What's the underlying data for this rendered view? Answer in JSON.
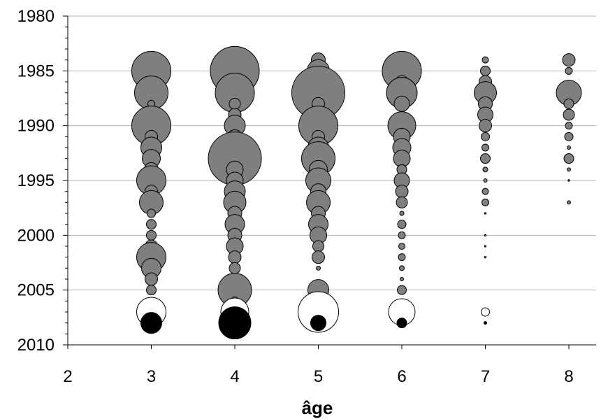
{
  "chart_data": {
    "type": "bubble",
    "xlabel": "âge",
    "ylabel": "",
    "xlim": [
      2,
      8
    ],
    "ylim": [
      1980,
      2010
    ],
    "y_reversed": true,
    "xticks": [
      "2",
      "3",
      "4",
      "5",
      "6",
      "7",
      "8"
    ],
    "yticks": [
      "1980",
      "1985",
      "1990",
      "1995",
      "2000",
      "2005",
      "2010"
    ],
    "grid": "horizontal",
    "legend": "none",
    "colors": {
      "historical": "#7f7f7f",
      "open": "#ffffff",
      "last": "#000000",
      "stroke": "#000000"
    },
    "series": [
      {
        "color": "#7f7f7f",
        "points": [
          {
            "x": 3,
            "y": 1985,
            "size": 28
          },
          {
            "x": 3,
            "y": 1987,
            "size": 24
          },
          {
            "x": 3,
            "y": 1988,
            "size": 5
          },
          {
            "x": 3,
            "y": 1990,
            "size": 28
          },
          {
            "x": 3,
            "y": 1991,
            "size": 9
          },
          {
            "x": 3,
            "y": 1992,
            "size": 15
          },
          {
            "x": 3,
            "y": 1993,
            "size": 13
          },
          {
            "x": 3,
            "y": 1994,
            "size": 10
          },
          {
            "x": 3,
            "y": 1995,
            "size": 21
          },
          {
            "x": 3,
            "y": 1996,
            "size": 9
          },
          {
            "x": 3,
            "y": 1997,
            "size": 17
          },
          {
            "x": 3,
            "y": 1998,
            "size": 6
          },
          {
            "x": 3,
            "y": 1999,
            "size": 7
          },
          {
            "x": 3,
            "y": 2000,
            "size": 7
          },
          {
            "x": 3,
            "y": 2001,
            "size": 9
          },
          {
            "x": 3,
            "y": 2002,
            "size": 21
          },
          {
            "x": 3,
            "y": 2003,
            "size": 14
          },
          {
            "x": 3,
            "y": 2004,
            "size": 9
          },
          {
            "x": 3,
            "y": 2005,
            "size": 7
          },
          {
            "x": 4,
            "y": 1985,
            "size": 35
          },
          {
            "x": 4,
            "y": 1987,
            "size": 28
          },
          {
            "x": 4,
            "y": 1988,
            "size": 8
          },
          {
            "x": 4,
            "y": 1989,
            "size": 9
          },
          {
            "x": 4,
            "y": 1990,
            "size": 15
          },
          {
            "x": 4,
            "y": 1991,
            "size": 10
          },
          {
            "x": 4,
            "y": 1993,
            "size": 38
          },
          {
            "x": 4,
            "y": 1994,
            "size": 12
          },
          {
            "x": 4,
            "y": 1995,
            "size": 12
          },
          {
            "x": 4,
            "y": 1996,
            "size": 15
          },
          {
            "x": 4,
            "y": 1997,
            "size": 16
          },
          {
            "x": 4,
            "y": 1998,
            "size": 10
          },
          {
            "x": 4,
            "y": 1999,
            "size": 14
          },
          {
            "x": 4,
            "y": 2000,
            "size": 10
          },
          {
            "x": 4,
            "y": 2001,
            "size": 12
          },
          {
            "x": 4,
            "y": 2002,
            "size": 9
          },
          {
            "x": 4,
            "y": 2003,
            "size": 8
          },
          {
            "x": 4,
            "y": 2005,
            "size": 24
          },
          {
            "x": 4,
            "y": 2006,
            "size": 6
          },
          {
            "x": 5,
            "y": 1984,
            "size": 10
          },
          {
            "x": 5,
            "y": 1985,
            "size": 16
          },
          {
            "x": 5,
            "y": 1986,
            "size": 20
          },
          {
            "x": 5,
            "y": 1987,
            "size": 38
          },
          {
            "x": 5,
            "y": 1988,
            "size": 9
          },
          {
            "x": 5,
            "y": 1990,
            "size": 28
          },
          {
            "x": 5,
            "y": 1991,
            "size": 9
          },
          {
            "x": 5,
            "y": 1992,
            "size": 15
          },
          {
            "x": 5,
            "y": 1993,
            "size": 24
          },
          {
            "x": 5,
            "y": 1994,
            "size": 13
          },
          {
            "x": 5,
            "y": 1995,
            "size": 18
          },
          {
            "x": 5,
            "y": 1996,
            "size": 11
          },
          {
            "x": 5,
            "y": 1997,
            "size": 17
          },
          {
            "x": 5,
            "y": 1998,
            "size": 10
          },
          {
            "x": 5,
            "y": 1999,
            "size": 14
          },
          {
            "x": 5,
            "y": 2000,
            "size": 12
          },
          {
            "x": 5,
            "y": 2001,
            "size": 8
          },
          {
            "x": 5,
            "y": 2002,
            "size": 9
          },
          {
            "x": 5,
            "y": 2003,
            "size": 3
          },
          {
            "x": 5,
            "y": 2005,
            "size": 15
          },
          {
            "x": 6,
            "y": 1985,
            "size": 28
          },
          {
            "x": 6,
            "y": 1986,
            "size": 9
          },
          {
            "x": 6,
            "y": 1987,
            "size": 22
          },
          {
            "x": 6,
            "y": 1988,
            "size": 11
          },
          {
            "x": 6,
            "y": 1990,
            "size": 20
          },
          {
            "x": 6,
            "y": 1991,
            "size": 12
          },
          {
            "x": 6,
            "y": 1992,
            "size": 13
          },
          {
            "x": 6,
            "y": 1993,
            "size": 12
          },
          {
            "x": 6,
            "y": 1994,
            "size": 7
          },
          {
            "x": 6,
            "y": 1995,
            "size": 11
          },
          {
            "x": 6,
            "y": 1996,
            "size": 9
          },
          {
            "x": 6,
            "y": 1997,
            "size": 8
          },
          {
            "x": 6,
            "y": 1998,
            "size": 3
          },
          {
            "x": 6,
            "y": 1999,
            "size": 6
          },
          {
            "x": 6,
            "y": 2000,
            "size": 5
          },
          {
            "x": 6,
            "y": 2001,
            "size": 4.5
          },
          {
            "x": 6,
            "y": 2002,
            "size": 5
          },
          {
            "x": 6,
            "y": 2003,
            "size": 3.5
          },
          {
            "x": 6,
            "y": 2004,
            "size": 2.5
          },
          {
            "x": 6,
            "y": 2005,
            "size": 6.5
          },
          {
            "x": 7,
            "y": 1984,
            "size": 4.5
          },
          {
            "x": 7,
            "y": 1985,
            "size": 7
          },
          {
            "x": 7,
            "y": 1986,
            "size": 9
          },
          {
            "x": 7,
            "y": 1987,
            "size": 16
          },
          {
            "x": 7,
            "y": 1988,
            "size": 10
          },
          {
            "x": 7,
            "y": 1989,
            "size": 11
          },
          {
            "x": 7,
            "y": 1990,
            "size": 9
          },
          {
            "x": 7,
            "y": 1991,
            "size": 6
          },
          {
            "x": 7,
            "y": 1992,
            "size": 5
          },
          {
            "x": 7,
            "y": 1993,
            "size": 7
          },
          {
            "x": 7,
            "y": 1994,
            "size": 3.5
          },
          {
            "x": 7,
            "y": 1995,
            "size": 2.5
          },
          {
            "x": 7,
            "y": 1996,
            "size": 4.5
          },
          {
            "x": 7,
            "y": 1997,
            "size": 5
          },
          {
            "x": 7,
            "y": 1998,
            "size": 1.2
          },
          {
            "x": 7,
            "y": 2000,
            "size": 1.2
          },
          {
            "x": 7,
            "y": 2001,
            "size": 1.2
          },
          {
            "x": 7,
            "y": 2002,
            "size": 1.2
          },
          {
            "x": 8,
            "y": 1984,
            "size": 9
          },
          {
            "x": 8,
            "y": 1985,
            "size": 5
          },
          {
            "x": 8,
            "y": 1987,
            "size": 18
          },
          {
            "x": 8,
            "y": 1988,
            "size": 7
          },
          {
            "x": 8,
            "y": 1989,
            "size": 8
          },
          {
            "x": 8,
            "y": 1990,
            "size": 5
          },
          {
            "x": 8,
            "y": 1991,
            "size": 6
          },
          {
            "x": 8,
            "y": 1992,
            "size": 2.5
          },
          {
            "x": 8,
            "y": 1993,
            "size": 7
          },
          {
            "x": 8,
            "y": 1994,
            "size": 2.5
          },
          {
            "x": 8,
            "y": 1995,
            "size": 1.2
          },
          {
            "x": 8,
            "y": 1997,
            "size": 2.5
          }
        ]
      },
      {
        "color": "#ffffff",
        "points": [
          {
            "x": 3,
            "y": 2007,
            "size": 21
          },
          {
            "x": 4,
            "y": 2007,
            "size": 20
          },
          {
            "x": 5,
            "y": 2007,
            "size": 29
          },
          {
            "x": 6,
            "y": 2007,
            "size": 19
          },
          {
            "x": 7,
            "y": 2007,
            "size": 6
          }
        ]
      },
      {
        "color": "#000000",
        "points": [
          {
            "x": 3,
            "y": 2008,
            "size": 15
          },
          {
            "x": 4,
            "y": 2008,
            "size": 23
          },
          {
            "x": 5,
            "y": 2008,
            "size": 11
          },
          {
            "x": 6,
            "y": 2008,
            "size": 7
          },
          {
            "x": 7,
            "y": 2008,
            "size": 2
          }
        ]
      }
    ]
  }
}
